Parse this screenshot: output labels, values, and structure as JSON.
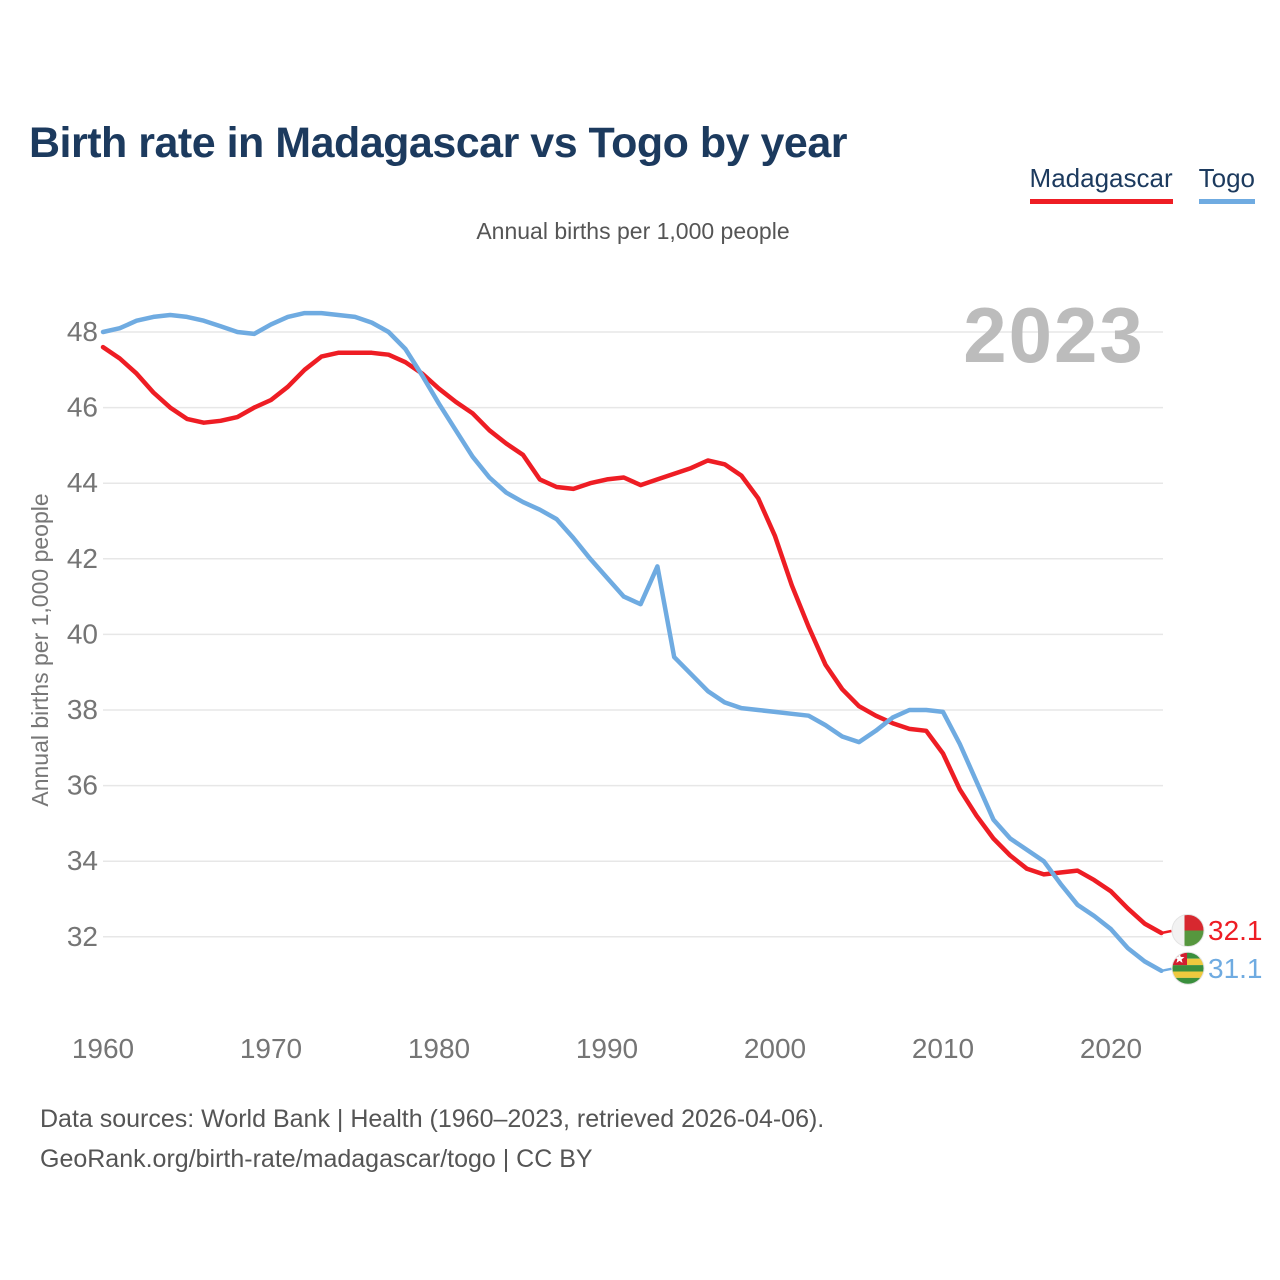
{
  "header": {
    "title": "Birth rate in Madagascar vs Togo by year"
  },
  "legend": {
    "items": [
      {
        "label": "Madagascar",
        "color": "#ee1d24"
      },
      {
        "label": "Togo",
        "color": "#6fabe1"
      }
    ]
  },
  "subtitle": "Annual births per 1,000 people",
  "watermark": "2023",
  "footer": {
    "line1": "Data sources: World Bank | Health (1960–2023, retrieved 2026-04-06).",
    "line2": "GeoRank.org/birth-rate/madagascar/togo | CC BY"
  },
  "chart_data": {
    "type": "line",
    "title": "Birth rate in Madagascar vs Togo by year",
    "subtitle": "Annual births per 1,000 people",
    "ylabel": "Annual births per 1,000 people",
    "x_start": 1960,
    "x_end": 2023,
    "x_ticks": [
      1960,
      1970,
      1980,
      1990,
      2000,
      2010,
      2020
    ],
    "y_ticks": [
      32,
      34,
      36,
      38,
      40,
      42,
      44,
      46,
      48
    ],
    "ylim": [
      30.5,
      49.3
    ],
    "xlim": [
      1960,
      2023
    ],
    "grid": "horizontal",
    "legend_position": "top-right",
    "series": [
      {
        "id": "madagascar",
        "name": "Madagascar",
        "color": "#ee1d24",
        "end_label": "32.1",
        "flag_id": "flag-madagascar",
        "values": [
          47.6,
          47.3,
          46.9,
          46.4,
          46.0,
          45.7,
          45.6,
          45.65,
          45.75,
          46.0,
          46.2,
          46.55,
          47.0,
          47.35,
          47.45,
          47.45,
          47.45,
          47.4,
          47.2,
          46.9,
          46.5,
          46.15,
          45.85,
          45.4,
          45.05,
          44.75,
          44.1,
          43.9,
          43.85,
          44.0,
          44.1,
          44.15,
          43.95,
          44.1,
          44.25,
          44.4,
          44.6,
          44.5,
          44.2,
          43.6,
          42.6,
          41.3,
          40.2,
          39.2,
          38.55,
          38.1,
          37.85,
          37.65,
          37.5,
          37.45,
          36.85,
          35.9,
          35.2,
          34.6,
          34.15,
          33.8,
          33.65,
          33.7,
          33.75,
          33.5,
          33.2,
          32.75,
          32.35,
          32.1
        ]
      },
      {
        "id": "togo",
        "name": "Togo",
        "color": "#6fabe1",
        "end_label": "31.1",
        "flag_id": "flag-togo",
        "values": [
          48.0,
          48.1,
          48.3,
          48.4,
          48.45,
          48.4,
          48.3,
          48.15,
          48.0,
          47.95,
          48.2,
          48.4,
          48.5,
          48.5,
          48.45,
          48.4,
          48.25,
          48.0,
          47.55,
          46.85,
          46.1,
          45.4,
          44.7,
          44.15,
          43.75,
          43.5,
          43.3,
          43.05,
          42.55,
          42.0,
          41.5,
          41.0,
          40.8,
          41.8,
          39.4,
          38.95,
          38.5,
          38.2,
          38.05,
          38.0,
          37.95,
          37.9,
          37.85,
          37.6,
          37.3,
          37.15,
          37.45,
          37.8,
          38.0,
          38.0,
          37.95,
          37.1,
          36.1,
          35.1,
          34.6,
          34.3,
          34.0,
          33.4,
          32.85,
          32.55,
          32.2,
          31.7,
          31.35,
          31.1
        ]
      }
    ]
  }
}
